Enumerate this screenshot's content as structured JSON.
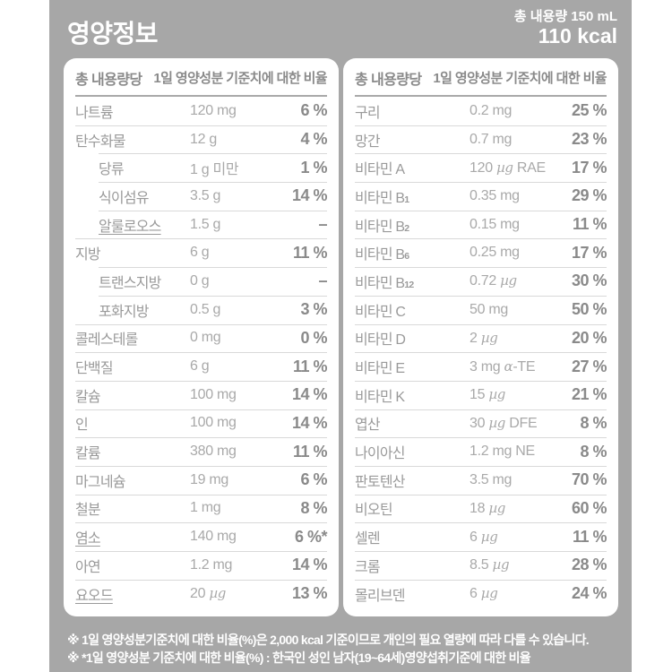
{
  "header": {
    "title": "영양정보",
    "total_volume": "총 내용량 150 mL",
    "calories": "110 kcal"
  },
  "table_header": {
    "amount_col": "총 내용량당",
    "dv_col": "1일 영양성분 기준치에 대한 비율"
  },
  "left_table": {
    "rows": [
      {
        "label": "나트륨",
        "amount": "120 mg",
        "pct": "6 %"
      },
      {
        "label": "탄수화물",
        "amount": "12 g",
        "pct": "4 %"
      },
      {
        "label": "당류",
        "amount": "1 g 미만",
        "pct": "1 %",
        "indent": true
      },
      {
        "label": "식이섬유",
        "amount": "3.5 g",
        "pct": "14 %",
        "indent": true
      },
      {
        "label": "알룰로오스",
        "amount": "1.5 g",
        "pct": "–",
        "indent": true,
        "underline": true
      },
      {
        "label": "지방",
        "amount": "6 g",
        "pct": "11 %"
      },
      {
        "label": "트랜스지방",
        "amount": "0 g",
        "pct": "–",
        "indent": true
      },
      {
        "label": "포화지방",
        "amount": "0.5 g",
        "pct": "3 %",
        "indent": true
      },
      {
        "label": "콜레스테롤",
        "amount": "0 mg",
        "pct": "0 %"
      },
      {
        "label": "단백질",
        "amount": "6 g",
        "pct": "11 %"
      },
      {
        "label": "칼슘",
        "amount": "100 mg",
        "pct": "14 %"
      },
      {
        "label": "인",
        "amount": "100 mg",
        "pct": "14 %"
      },
      {
        "label": "칼륨",
        "amount": "380 mg",
        "pct": "11 %"
      },
      {
        "label": "마그네슘",
        "amount": "19 mg",
        "pct": "6 %"
      },
      {
        "label": "철분",
        "amount": "1 mg",
        "pct": "8 %"
      },
      {
        "label": "염소",
        "amount": "140 mg",
        "pct": "6 %*",
        "underline": true
      },
      {
        "label": "아연",
        "amount": "1.2 mg",
        "pct": "14 %"
      },
      {
        "label": "요오드",
        "amount": "20 µg",
        "pct": "13 %",
        "underline": true
      }
    ]
  },
  "right_table": {
    "rows": [
      {
        "label": "구리",
        "amount": "0.2 mg",
        "pct": "25 %"
      },
      {
        "label": "망간",
        "amount": "0.7 mg",
        "pct": "23 %"
      },
      {
        "label": "비타민 A",
        "amount": "120 µg RAE",
        "pct": "17 %"
      },
      {
        "label": "비타민 B",
        "sub": "1",
        "amount": "0.35 mg",
        "pct": "29 %"
      },
      {
        "label": "비타민 B",
        "sub": "2",
        "amount": "0.15 mg",
        "pct": "11 %"
      },
      {
        "label": "비타민 B",
        "sub": "6",
        "amount": "0.25 mg",
        "pct": "17 %"
      },
      {
        "label": "비타민 B",
        "sub": "12",
        "amount": "0.72 µg",
        "pct": "30 %"
      },
      {
        "label": "비타민 C",
        "amount": "50 mg",
        "pct": "50 %"
      },
      {
        "label": "비타민 D",
        "amount": "2 µg",
        "pct": "20 %"
      },
      {
        "label": "비타민 E",
        "amount": "3 mg α-TE",
        "pct": "27 %"
      },
      {
        "label": "비타민 K",
        "amount": "15 µg",
        "pct": "21 %"
      },
      {
        "label": "엽산",
        "amount": "30 µg DFE",
        "pct": "8 %"
      },
      {
        "label": "나이아신",
        "amount": "1.2 mg NE",
        "pct": "8 %"
      },
      {
        "label": "판토텐산",
        "amount": "3.5 mg",
        "pct": "70 %"
      },
      {
        "label": "비오틴",
        "amount": "18 µg",
        "pct": "60 %"
      },
      {
        "label": "셀렌",
        "amount": "6 µg",
        "pct": "11 %"
      },
      {
        "label": "크롬",
        "amount": "8.5 µg",
        "pct": "28 %"
      },
      {
        "label": "몰리브덴",
        "amount": "6 µg",
        "pct": "24 %"
      }
    ]
  },
  "footnotes": [
    "※ 1일 영양성분기준치에 대한 비율(%)은 2,000 kcal 기준이므로 개인의 필요 열량에 따라 다를 수 있습니다.",
    "※ *1일 영양성분 기준치에 대한 비율(%) : 한국인 성인 남자(19~64세)영양섭취기준에 대한 비율"
  ],
  "colors": {
    "panel_bg": "#a7a7a7",
    "card_bg": "#ffffff",
    "header_text": "#ffffff",
    "column_header_text": "#8a8a8a",
    "label_text": "#9a9a9a",
    "amount_text": "#a9a9a9",
    "percent_text": "#8a8a8a",
    "separator": "#d9d9d9"
  }
}
